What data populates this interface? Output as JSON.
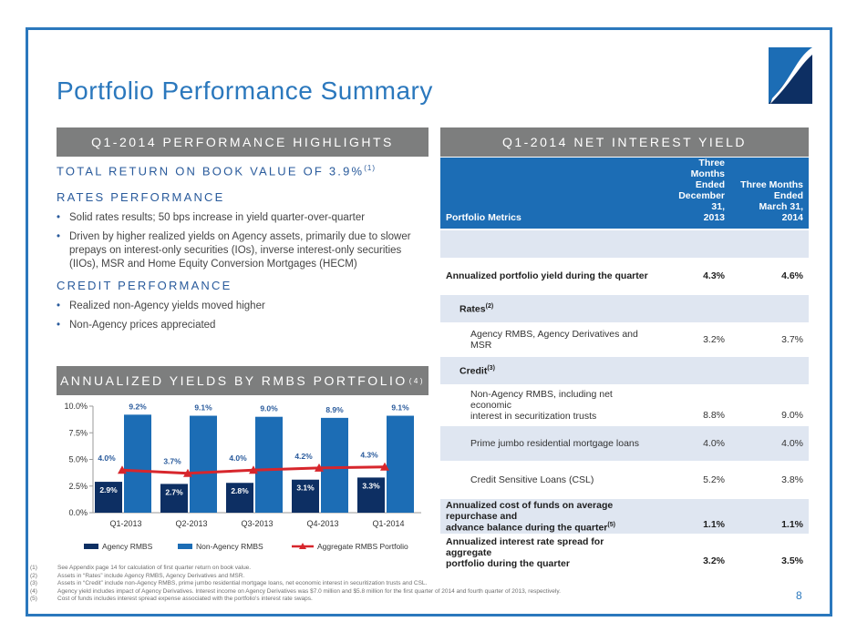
{
  "title": "Portfolio Performance Summary",
  "page_number": "8",
  "highlights": {
    "band": "Q1-2014 PERFORMANCE HIGHLIGHTS",
    "headline": "TOTAL RETURN ON BOOK VALUE OF 3.9%",
    "headline_note": "(1)",
    "rates_heading": "RATES PERFORMANCE",
    "rates_bullets": [
      "Solid rates results; 50 bps increase in yield quarter-over-quarter",
      "Driven by higher realized yields on Agency assets, primarily due to slower prepays on interest-only securities (IOs), inverse interest-only securities (IIOs), MSR and Home Equity Conversion Mortgages (HECM)"
    ],
    "credit_heading": "CREDIT PERFORMANCE",
    "credit_bullets": [
      "Realized non-Agency yields moved higher",
      "Non-Agency prices appreciated"
    ]
  },
  "yields_band": {
    "title": "ANNUALIZED YIELDS BY RMBS PORTFOLIO",
    "note": "(4)"
  },
  "chart_data": {
    "type": "bar",
    "categories": [
      "Q1-2013",
      "Q2-2013",
      "Q3-2013",
      "Q4-2013",
      "Q1-2014"
    ],
    "series": [
      {
        "name": "Agency RMBS",
        "kind": "bar",
        "values": [
          2.9,
          2.7,
          2.8,
          3.1,
          3.3
        ],
        "labels": [
          "2.9%",
          "2.7%",
          "2.8%",
          "3.1%",
          "3.3%"
        ]
      },
      {
        "name": "Non-Agency RMBS",
        "kind": "bar",
        "values": [
          9.2,
          9.1,
          9.0,
          8.9,
          9.1
        ],
        "labels": [
          "9.2%",
          "9.1%",
          "9.0%",
          "8.9%",
          "9.1%"
        ]
      },
      {
        "name": "Aggregate RMBS Portfolio",
        "kind": "line",
        "values": [
          4.0,
          3.7,
          4.0,
          4.2,
          4.3
        ],
        "labels": [
          "4.0%",
          "3.7%",
          "4.0%",
          "4.2%",
          "4.3%"
        ]
      }
    ],
    "yticks": [
      "0.0%",
      "2.5%",
      "5.0%",
      "7.5%",
      "10.0%"
    ],
    "ylim": [
      0,
      10
    ],
    "legend_position": "bottom",
    "colors": {
      "agency": "#0d2f63",
      "non_agency": "#1c6db5",
      "aggregate": "#d7262c"
    }
  },
  "nii": {
    "band": "Q1-2014 NET INTEREST YIELD",
    "header": {
      "metric": "Portfolio Metrics",
      "col1": [
        "Three Months",
        "Ended",
        "December 31,",
        "2013"
      ],
      "col2": [
        "Three Months",
        "Ended",
        "March 31,",
        "2014"
      ]
    },
    "rows": {
      "annualized_yield": {
        "label": "Annualized portfolio yield during the quarter",
        "v1": "4.3%",
        "v2": "4.6%"
      },
      "rates": {
        "label": "Rates",
        "note": "(2)"
      },
      "agency": {
        "label": "Agency RMBS, Agency Derivatives and MSR",
        "v1": "3.2%",
        "v2": "3.7%"
      },
      "credit": {
        "label": "Credit",
        "note": "(3)"
      },
      "non_agency": {
        "label1": "Non-Agency RMBS, including net economic",
        "label2": "interest in securitization trusts",
        "v1": "8.8%",
        "v2": "9.0%"
      },
      "prime_jumbo": {
        "label": "Prime jumbo residential mortgage loans",
        "v1": "4.0%",
        "v2": "4.0%"
      },
      "csl": {
        "label": "Credit Sensitive Loans (CSL)",
        "v1": "5.2%",
        "v2": "3.8%"
      },
      "cost_of_funds": {
        "label1": "Annualized cost of funds on average repurchase and",
        "label2": "advance balance during the quarter",
        "note": "(5)",
        "v1": "1.1%",
        "v2": "1.1%"
      },
      "spread": {
        "label1": "Annualized interest rate spread for aggregate",
        "label2": "portfolio during the quarter",
        "v1": "3.2%",
        "v2": "3.5%"
      }
    }
  },
  "footnotes": [
    {
      "n": "(1)",
      "text": "See Appendix page 14 for calculation of first quarter return on book value."
    },
    {
      "n": "(2)",
      "text": "Assets in “Rates” include Agency RMBS, Agency Derivatives and MSR."
    },
    {
      "n": "(3)",
      "text": "Assets in “Credit” include non-Agency RMBS, prime jumbo residential mortgage loans, net economic interest in securitization trusts and CSL."
    },
    {
      "n": "(4)",
      "text": "Agency yield includes impact of Agency Derivatives. Interest income on Agency Derivatives was $7.0 million and $5.8 million for the first quarter of 2014 and fourth quarter of 2013, respectively."
    },
    {
      "n": "(5)",
      "text": "Cost of funds includes interest spread expense associated with the portfolio's interest rate swaps."
    }
  ]
}
